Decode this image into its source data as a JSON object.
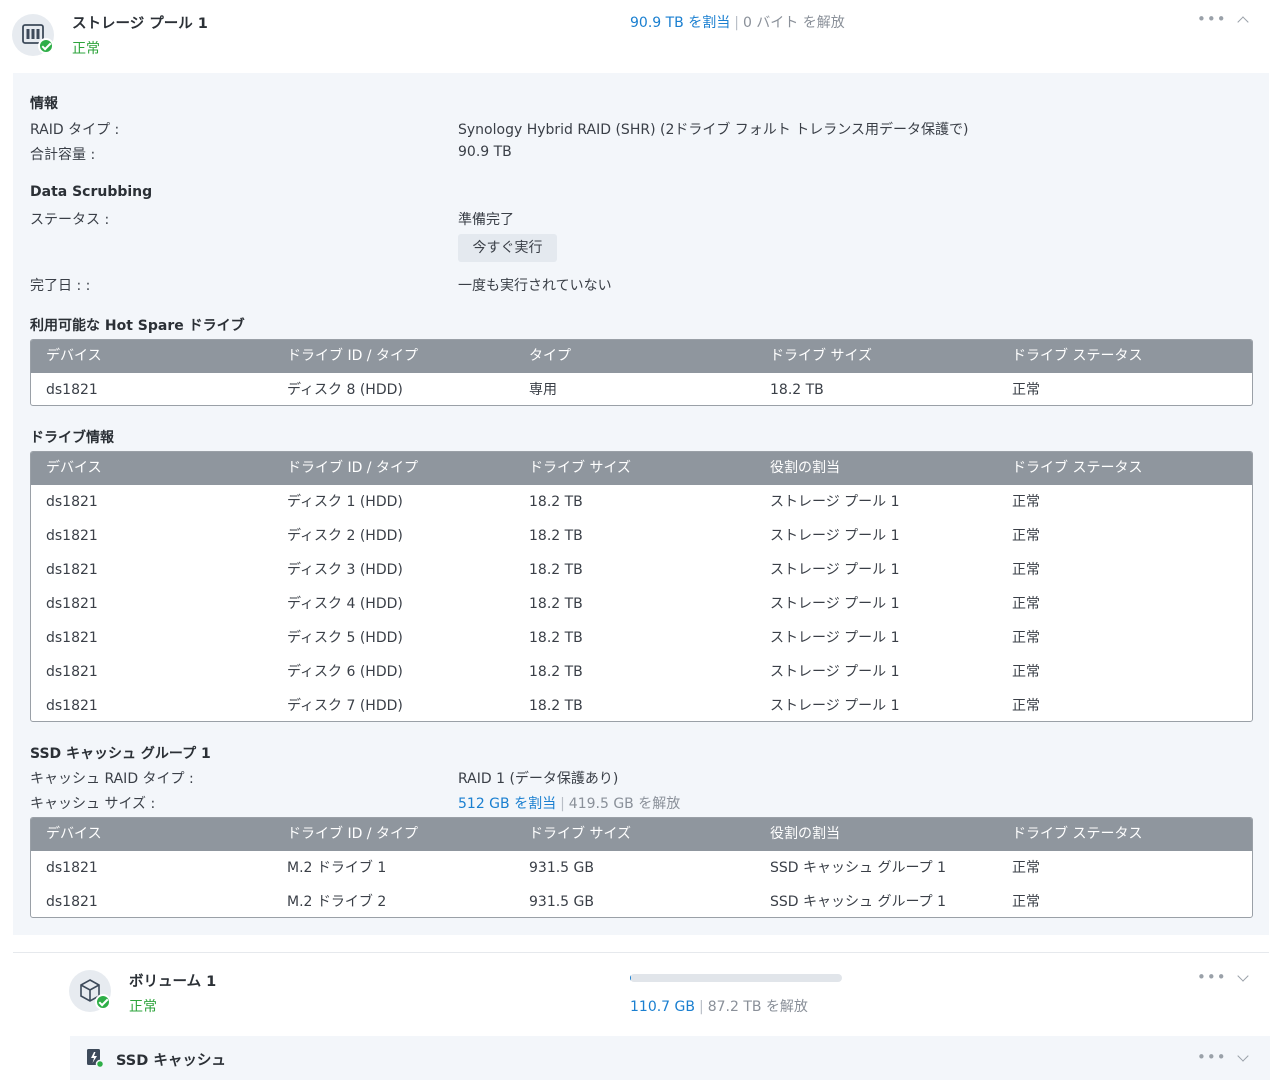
{
  "pool": {
    "title": "ストレージ プール 1",
    "status": "正常",
    "allocated": "90.9 TB を割当",
    "separator": "|",
    "free": "0 バイト を解放",
    "more_icon": "more-horizontal-icon",
    "collapse_icon": "chevron-up-icon"
  },
  "info": {
    "section_title": "情報",
    "raid_type_label": "RAID タイプ :",
    "raid_type_value": "Synology Hybrid RAID (SHR) (2ドライブ フォルト トレランス用データ保護で)",
    "total_capacity_label": "合計容量 :",
    "total_capacity_value": "90.9 TB"
  },
  "scrubbing": {
    "section_title": "Data Scrubbing",
    "status_label": "ステータス :",
    "status_value": "準備完了",
    "run_now_button": "今すぐ実行",
    "completed_label": "完了日 : :",
    "completed_value": "一度も実行されていない"
  },
  "hot_spare": {
    "section_title": "利用可能な Hot Spare ドライブ",
    "columns": [
      "デバイス",
      "ドライブ ID / タイプ",
      "タイプ",
      "ドライブ サイズ",
      "ドライブ ステータス"
    ],
    "rows": [
      [
        "ds1821",
        "ディスク 8 (HDD)",
        "専用",
        "18.2 TB",
        "正常"
      ]
    ]
  },
  "drive_info": {
    "section_title": "ドライブ情報",
    "columns": [
      "デバイス",
      "ドライブ ID / タイプ",
      "ドライブ サイズ",
      "役割の割当",
      "ドライブ ステータス"
    ],
    "rows": [
      [
        "ds1821",
        "ディスク 1 (HDD)",
        "18.2 TB",
        "ストレージ プール 1",
        "正常"
      ],
      [
        "ds1821",
        "ディスク 2 (HDD)",
        "18.2 TB",
        "ストレージ プール 1",
        "正常"
      ],
      [
        "ds1821",
        "ディスク 3 (HDD)",
        "18.2 TB",
        "ストレージ プール 1",
        "正常"
      ],
      [
        "ds1821",
        "ディスク 4 (HDD)",
        "18.2 TB",
        "ストレージ プール 1",
        "正常"
      ],
      [
        "ds1821",
        "ディスク 5 (HDD)",
        "18.2 TB",
        "ストレージ プール 1",
        "正常"
      ],
      [
        "ds1821",
        "ディスク 6 (HDD)",
        "18.2 TB",
        "ストレージ プール 1",
        "正常"
      ],
      [
        "ds1821",
        "ディスク 7 (HDD)",
        "18.2 TB",
        "ストレージ プール 1",
        "正常"
      ]
    ]
  },
  "ssd_cache_group": {
    "section_title": "SSD キャッシュ グループ 1",
    "raid_type_label": "キャッシュ RAID タイプ :",
    "raid_type_value": "RAID 1 (データ保護あり)",
    "size_label": "キャッシュ サイズ :",
    "size_allocated": "512 GB を割当",
    "size_free": "419.5 GB を解放",
    "columns": [
      "デバイス",
      "ドライブ ID / タイプ",
      "ドライブ サイズ",
      "役割の割当",
      "ドライブ ステータス"
    ],
    "rows": [
      [
        "ds1821",
        "M.2 ドライブ 1",
        "931.5 GB",
        "SSD キャッシュ グループ 1",
        "正常"
      ],
      [
        "ds1821",
        "M.2 ドライブ 2",
        "931.5 GB",
        "SSD キャッシュ グループ 1",
        "正常"
      ]
    ]
  },
  "volume": {
    "title": "ボリューム 1",
    "status": "正常",
    "used": "110.7 GB",
    "free": "87.2 TB を解放",
    "usage_fraction": 0.0012,
    "expand_icon": "chevron-down-icon"
  },
  "ssd_cache": {
    "title": "SSD キャッシュ",
    "expand_icon": "chevron-down-icon"
  },
  "colors": {
    "accent_blue": "#1a7fd0",
    "status_green": "#2ea43c",
    "table_header": "#8f969e",
    "panel_bg": "#f3f6fa"
  }
}
